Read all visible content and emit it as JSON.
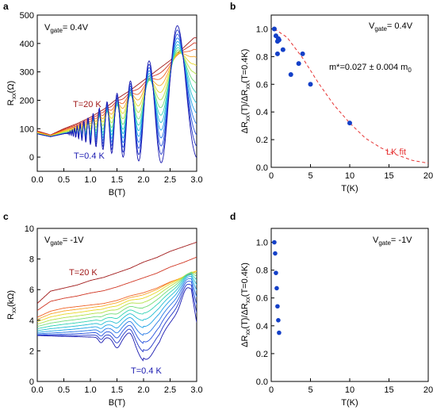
{
  "colors": {
    "hot": "#a01818",
    "cold": "#1a1ab0",
    "points": "#1440c8",
    "fit": "#e63232",
    "axis": "#000000"
  },
  "chart_data": [
    {
      "panel": "a",
      "type": "line",
      "xlabel": "B(T)",
      "ylabel": "Rxx(Ω)",
      "xlim": [
        0,
        3.0
      ],
      "ylim": [
        -50,
        500
      ],
      "xticks": [
        "0.0",
        "0.5",
        "1.0",
        "1.5",
        "2.0",
        "2.5",
        "3.0"
      ],
      "yticks": [
        "0",
        "100",
        "200",
        "300",
        "400",
        "500"
      ],
      "annotations": [
        "Vgate= 0.4V",
        "T=20 K",
        "T=0.4 K"
      ],
      "series_count": 14,
      "temperature_range_K": [
        0.4,
        20
      ],
      "x": [
        0.0,
        0.25,
        0.5,
        0.75,
        1.0,
        1.25,
        1.5,
        1.75,
        2.0,
        2.25,
        2.5,
        2.75,
        2.95
      ],
      "series": [
        {
          "values": [
            92,
            78,
            100,
            118,
            140,
            168,
            205,
            235,
            270,
            305,
            340,
            385,
            420
          ]
        },
        {
          "values": [
            82,
            72,
            84,
            92,
            105,
            122,
            140,
            165,
            190,
            225,
            265,
            310,
            350
          ]
        },
        {
          "values": [
            82,
            72,
            82,
            88,
            95,
            105,
            115,
            130,
            150,
            175,
            205,
            240,
            280
          ]
        }
      ],
      "oscillation_minima_coldest": [
        {
          "x": 1.25,
          "y": 20
        },
        {
          "x": 1.45,
          "y": 5
        },
        {
          "x": 1.65,
          "y": 0
        },
        {
          "x": 1.9,
          "y": -10
        },
        {
          "x": 2.15,
          "y": -20
        },
        {
          "x": 2.45,
          "y": -25
        },
        {
          "x": 2.85,
          "y": -40
        }
      ],
      "oscillation_maxima_coldest": [
        {
          "x": 1.35,
          "y": 140
        },
        {
          "x": 1.55,
          "y": 170
        },
        {
          "x": 1.8,
          "y": 190
        },
        {
          "x": 2.05,
          "y": 220
        },
        {
          "x": 2.3,
          "y": 270
        },
        {
          "x": 2.6,
          "y": 320
        },
        {
          "x": 2.95,
          "y": 390
        }
      ]
    },
    {
      "panel": "b",
      "type": "scatter",
      "xlabel": "T(K)",
      "ylabel": "ΔRxx(T)/ΔRxx(T=0.4K)",
      "xlim": [
        0,
        20
      ],
      "ylim": [
        0.0,
        1.1
      ],
      "xticks": [
        "0",
        "5",
        "10",
        "15",
        "20"
      ],
      "yticks": [
        "0.0",
        "0.2",
        "0.4",
        "0.6",
        "0.8",
        "1.0"
      ],
      "annotations": [
        "Vgate= 0.4V",
        "m*=0.027 ± 0.004 m0",
        "LK fit"
      ],
      "points": [
        {
          "x": 0.4,
          "y": 1.0
        },
        {
          "x": 0.6,
          "y": 0.95
        },
        {
          "x": 0.8,
          "y": 0.91
        },
        {
          "x": 0.9,
          "y": 0.93
        },
        {
          "x": 1.0,
          "y": 0.92
        },
        {
          "x": 0.8,
          "y": 0.82
        },
        {
          "x": 1.5,
          "y": 0.85
        },
        {
          "x": 2.5,
          "y": 0.67
        },
        {
          "x": 3.5,
          "y": 0.75
        },
        {
          "x": 4.0,
          "y": 0.82
        },
        {
          "x": 5.0,
          "y": 0.6
        },
        {
          "x": 10.0,
          "y": 0.32
        }
      ],
      "fit": {
        "name": "LK fit",
        "x": [
          0.4,
          2,
          4,
          6,
          8,
          10,
          12,
          14,
          16,
          18,
          20
        ],
        "y": [
          1.0,
          0.94,
          0.79,
          0.61,
          0.45,
          0.32,
          0.21,
          0.14,
          0.09,
          0.05,
          0.03
        ]
      }
    },
    {
      "panel": "c",
      "type": "line",
      "xlabel": "B(T)",
      "ylabel": "Rxx(kΩ)",
      "xlim": [
        0,
        3.0
      ],
      "ylim": [
        0,
        10
      ],
      "xticks": [
        "0.0",
        "0.5",
        "1.0",
        "1.5",
        "2.0",
        "2.5",
        "3.0"
      ],
      "yticks": [
        "0",
        "2",
        "4",
        "6",
        "8",
        "10"
      ],
      "annotations": [
        "Vgate= -1V",
        "T=20 K",
        "T=0.4 K"
      ],
      "series_count": 14,
      "x": [
        0.0,
        0.25,
        0.5,
        0.75,
        1.0,
        1.25,
        1.5,
        1.75,
        2.0,
        2.25,
        2.5,
        2.75,
        3.0
      ],
      "series": [
        {
          "values": [
            5.1,
            5.9,
            6.1,
            6.3,
            6.6,
            6.8,
            7.1,
            7.4,
            7.8,
            8.1,
            8.5,
            8.8,
            9.1
          ]
        },
        {
          "values": [
            4.2,
            4.6,
            4.8,
            4.9,
            5.0,
            5.1,
            5.3,
            5.6,
            5.8,
            6.1,
            6.5,
            6.8,
            7.2
          ]
        },
        {
          "values": [
            3.0,
            3.0,
            3.0,
            3.0,
            3.0,
            3.0,
            3.0,
            3.4,
            1.4,
            2.8,
            4.5,
            5.8,
            4.6
          ]
        }
      ]
    },
    {
      "panel": "d",
      "type": "scatter",
      "xlabel": "T(K)",
      "ylabel": "ΔRxx(T)/ΔRxx(T=0.4K)",
      "xlim": [
        0,
        20
      ],
      "ylim": [
        0.0,
        1.1
      ],
      "xticks": [
        "0",
        "5",
        "10",
        "15",
        "20"
      ],
      "yticks": [
        "0.0",
        "0.2",
        "0.4",
        "0.6",
        "0.8",
        "1.0"
      ],
      "annotations": [
        "Vgate= -1V"
      ],
      "points": [
        {
          "x": 0.4,
          "y": 1.0
        },
        {
          "x": 0.5,
          "y": 0.92
        },
        {
          "x": 0.6,
          "y": 0.78
        },
        {
          "x": 0.7,
          "y": 0.67
        },
        {
          "x": 0.8,
          "y": 0.54
        },
        {
          "x": 0.9,
          "y": 0.44
        },
        {
          "x": 1.0,
          "y": 0.35
        }
      ]
    }
  ],
  "panel_labels": [
    "a",
    "b",
    "c",
    "d"
  ]
}
